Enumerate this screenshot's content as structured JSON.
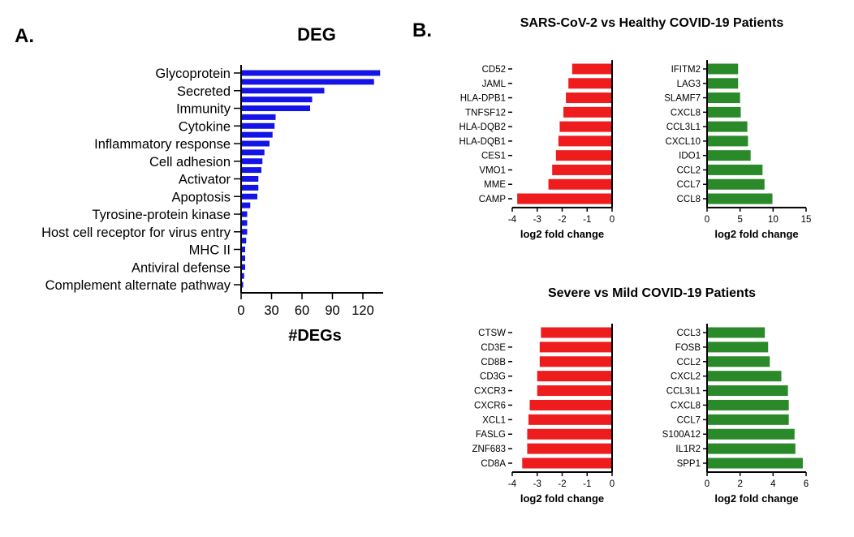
{
  "colors": {
    "blue": "#1414e6",
    "red": "#ee1c1c",
    "green": "#2a8a2a"
  },
  "panel_a": {
    "letter": "A."
  },
  "panel_b": {
    "letter": "B.",
    "title_top": "SARS-CoV-2 vs Healthy COVID-19 Patients",
    "title_bottom": "Severe vs Mild COVID-19 Patients"
  },
  "chart_data": [
    {
      "type": "bar",
      "orientation": "horizontal",
      "title": "DEG",
      "xlabel": "#DEGs",
      "ylabel": "",
      "xlim": [
        0,
        140
      ],
      "xticks": [
        0,
        30,
        60,
        90,
        120
      ],
      "color": "blue",
      "category_labels": [
        "Glycoprotein",
        "Secreted",
        "Immunity",
        "Cytokine",
        "Inflammatory response",
        "Cell adhesion",
        "Activator",
        "Apoptosis",
        "Tyrosine-protein kinase",
        "Host cell receptor for virus entry",
        "MHC II",
        "Antiviral defense",
        "Complement alternate pathway"
      ],
      "bars": [
        {
          "label": "Glycoprotein",
          "value": 137
        },
        {
          "label": "",
          "value": 131
        },
        {
          "label": "Secreted",
          "value": 82
        },
        {
          "label": "",
          "value": 70
        },
        {
          "label": "Immunity",
          "value": 68
        },
        {
          "label": "",
          "value": 34
        },
        {
          "label": "Cytokine",
          "value": 33
        },
        {
          "label": "",
          "value": 31
        },
        {
          "label": "Inflammatory response",
          "value": 28
        },
        {
          "label": "",
          "value": 23
        },
        {
          "label": "Cell adhesion",
          "value": 21
        },
        {
          "label": "",
          "value": 20
        },
        {
          "label": "Activator",
          "value": 17
        },
        {
          "label": "",
          "value": 17
        },
        {
          "label": "Apoptosis",
          "value": 16
        },
        {
          "label": "",
          "value": 9
        },
        {
          "label": "Tyrosine-protein kinase",
          "value": 6
        },
        {
          "label": "",
          "value": 6
        },
        {
          "label": "Host cell receptor for virus entry",
          "value": 6
        },
        {
          "label": "",
          "value": 5
        },
        {
          "label": "MHC II",
          "value": 4
        },
        {
          "label": "",
          "value": 4
        },
        {
          "label": "Antiviral defense",
          "value": 4
        },
        {
          "label": "",
          "value": 3
        },
        {
          "label": "Complement alternate pathway",
          "value": 2
        }
      ]
    },
    {
      "type": "bar",
      "orientation": "horizontal",
      "title": "",
      "xlabel": "log2 fold change",
      "xlim": [
        -4,
        0
      ],
      "xticks": [
        -4,
        -3,
        -2,
        -1,
        0
      ],
      "color": "red",
      "categories": [
        "CD52",
        "JAML",
        "HLA-DPB1",
        "TNFSF12",
        "HLA-DQB2",
        "HLA-DQB1",
        "CES1",
        "VMO1",
        "MME",
        "CAMP"
      ],
      "values": [
        -1.6,
        -1.75,
        -1.85,
        -1.95,
        -2.1,
        -2.15,
        -2.25,
        -2.4,
        -2.55,
        -3.8
      ]
    },
    {
      "type": "bar",
      "orientation": "horizontal",
      "title": "",
      "xlabel": "log2 fold change",
      "xlim": [
        0,
        15
      ],
      "xticks": [
        0,
        5,
        10,
        15
      ],
      "color": "green",
      "categories": [
        "IFITM2",
        "LAG3",
        "SLAMF7",
        "CXCL8",
        "CCL3L1",
        "CXCL10",
        "IDO1",
        "CCL2",
        "CCL7",
        "CCL8"
      ],
      "values": [
        4.7,
        4.7,
        5.0,
        5.1,
        6.1,
        6.2,
        6.6,
        8.4,
        8.7,
        9.9
      ]
    },
    {
      "type": "bar",
      "orientation": "horizontal",
      "title": "",
      "xlabel": "log2 fold change",
      "xlim": [
        -4,
        0
      ],
      "xticks": [
        -4,
        -3,
        -2,
        -1,
        0
      ],
      "color": "red",
      "categories": [
        "CTSW",
        "CD3E",
        "CD8B",
        "CD3G",
        "CXCR3",
        "CXCR6",
        "XCL1",
        "FASLG",
        "ZNF683",
        "CD8A"
      ],
      "values": [
        -2.85,
        -2.9,
        -2.9,
        -3.0,
        -3.0,
        -3.3,
        -3.35,
        -3.4,
        -3.4,
        -3.6
      ]
    },
    {
      "type": "bar",
      "orientation": "horizontal",
      "title": "",
      "xlabel": "log2 fold change",
      "xlim": [
        0,
        6
      ],
      "xticks": [
        0,
        2,
        4,
        6
      ],
      "color": "green",
      "categories": [
        "CCL3",
        "FOSB",
        "CCL2",
        "CXCL2",
        "CCL3L1",
        "CXCL8",
        "CCL7",
        "S100A12",
        "IL1R2",
        "SPP1"
      ],
      "values": [
        3.5,
        3.7,
        3.8,
        4.5,
        4.9,
        4.95,
        4.95,
        5.3,
        5.35,
        5.8
      ]
    }
  ]
}
